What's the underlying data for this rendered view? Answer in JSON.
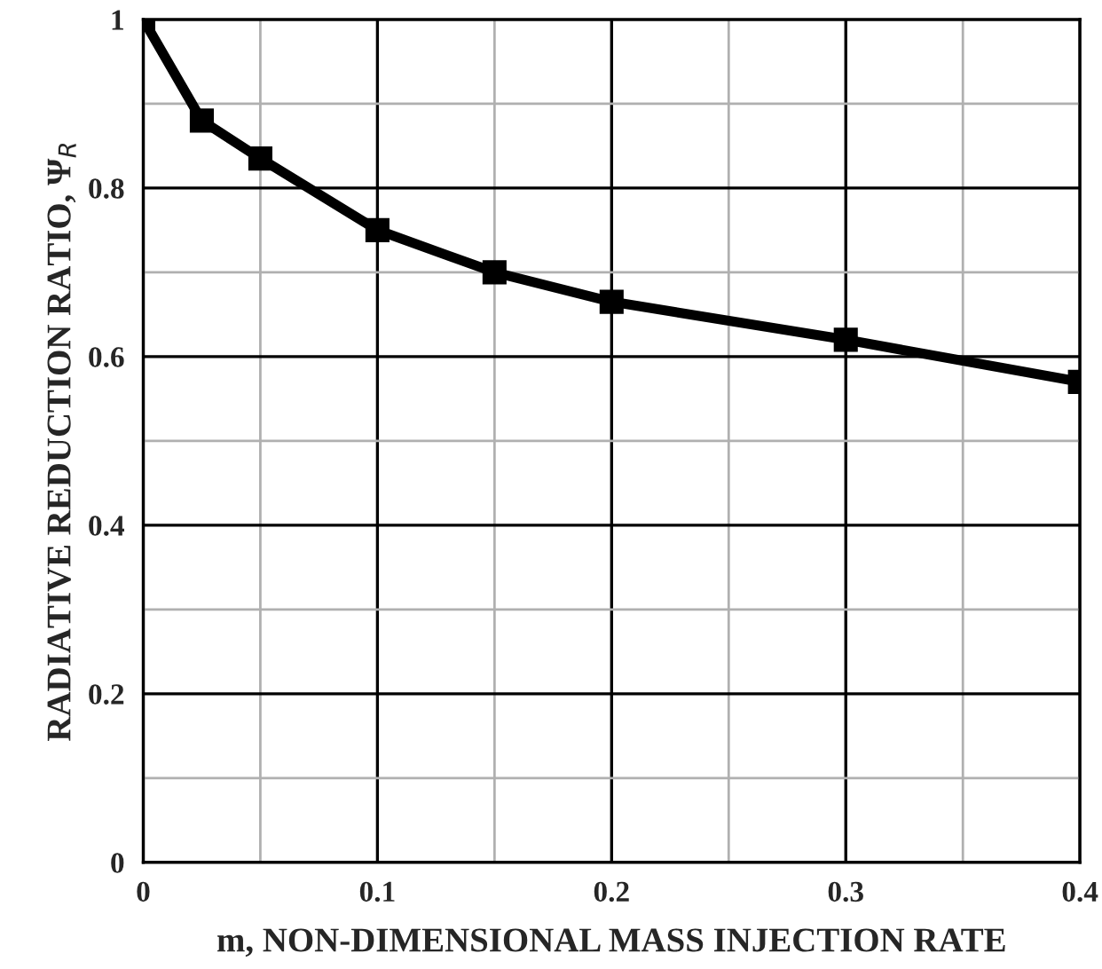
{
  "chart_data": {
    "type": "line",
    "xlabel": "m, NON-DIMENSIONAL MASS INJECTION RATE",
    "ylabel": "RADIATIVE REDUCTION RATIO, Ψ$_{R}$",
    "x": [
      0,
      0.025,
      0.05,
      0.1,
      0.15,
      0.2,
      0.3,
      0.4
    ],
    "series": [
      {
        "color": "#000000",
        "values": [
          1.0,
          0.88,
          0.835,
          0.75,
          0.7,
          0.665,
          0.62,
          0.57
        ]
      }
    ],
    "xlim": [
      0,
      0.4
    ],
    "ylim": [
      0,
      1
    ],
    "xticks": [
      0,
      {
        "value": 0.05,
        "label": null
      },
      0.1,
      {
        "value": 0.15,
        "label": null
      },
      0.2,
      {
        "value": 0.25,
        "label": null
      },
      0.3,
      {
        "value": 0.35,
        "label": null
      },
      0.4
    ],
    "yticks": [
      0,
      {
        "value": 0.1,
        "label": null
      },
      0.2,
      {
        "value": 0.3,
        "label": null
      },
      0.4,
      {
        "value": 0.5,
        "label": null
      },
      0.6,
      {
        "value": 0.7,
        "label": null
      },
      0.8,
      {
        "value": 0.9,
        "label": null
      },
      1
    ],
    "grid": true,
    "marker": "square",
    "line_style": "solid"
  }
}
